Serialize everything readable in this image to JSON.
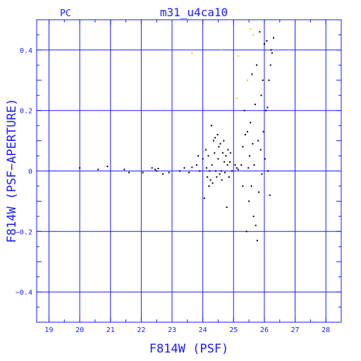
{
  "chart_data": {
    "type": "scatter",
    "title": "m31_u4ca10",
    "corner_label": "PC",
    "xlabel": "F814W (PSF)",
    "ylabel": "F814W (PSF−APERTURE)",
    "xlim": [
      18.6,
      28.5
    ],
    "ylim": [
      -0.5,
      0.5
    ],
    "x_ticks": [
      19,
      20,
      21,
      22,
      23,
      24,
      25,
      26,
      27,
      28
    ],
    "x_tick_labels": [
      "19",
      "20",
      "21",
      "22",
      "23",
      "24",
      "25",
      "26",
      "27",
      "28"
    ],
    "y_ticks": [
      -0.4,
      -0.2,
      0,
      0.2,
      0.4
    ],
    "y_tick_labels": [
      "−0.4",
      "−0.2",
      "0",
      "0.2",
      "0.4"
    ],
    "grid": true,
    "colors": {
      "axis": "#1a1aff",
      "grid": "#1a1aff",
      "points": "#000000",
      "outliers": "#e8c800"
    },
    "series": [
      {
        "color": "#000000",
        "points": [
          [
            20.0,
            0.01
          ],
          [
            20.6,
            0.005
          ],
          [
            20.9,
            0.015
          ],
          [
            21.45,
            0.005
          ],
          [
            21.6,
            -0.005
          ],
          [
            22.05,
            -0.005
          ],
          [
            22.35,
            0.01
          ],
          [
            22.45,
            0.005
          ],
          [
            22.5,
            0.0
          ],
          [
            22.55,
            0.008
          ],
          [
            22.7,
            -0.01
          ],
          [
            22.9,
            -0.005
          ],
          [
            23.25,
            0.0
          ],
          [
            23.4,
            0.01
          ],
          [
            23.55,
            -0.005
          ],
          [
            23.65,
            0.012
          ],
          [
            23.8,
            0.02
          ],
          [
            23.85,
            0.05
          ],
          [
            23.9,
            0.0
          ],
          [
            24.0,
            0.04
          ],
          [
            24.05,
            -0.09
          ],
          [
            24.1,
            0.07
          ],
          [
            24.12,
            0.01
          ],
          [
            24.15,
            -0.02
          ],
          [
            24.18,
            0.05
          ],
          [
            24.2,
            -0.05
          ],
          [
            24.22,
            0.0
          ],
          [
            24.25,
            -0.03
          ],
          [
            24.28,
            0.15
          ],
          [
            24.3,
            0.02
          ],
          [
            24.32,
            -0.04
          ],
          [
            24.35,
            0.1
          ],
          [
            24.38,
            0.06
          ],
          [
            24.4,
            0.11
          ],
          [
            24.42,
            0.0
          ],
          [
            24.45,
            -0.02
          ],
          [
            24.48,
            0.12
          ],
          [
            24.5,
            0.04
          ],
          [
            24.52,
            0.08
          ],
          [
            24.55,
            -0.01
          ],
          [
            24.57,
            0.09
          ],
          [
            24.6,
            0.0
          ],
          [
            24.62,
            -0.03
          ],
          [
            24.65,
            0.06
          ],
          [
            24.68,
            0.1
          ],
          [
            24.7,
            0.03
          ],
          [
            24.72,
            -0.005
          ],
          [
            24.75,
            0.05
          ],
          [
            24.78,
            -0.12
          ],
          [
            24.8,
            0.02
          ],
          [
            24.82,
            0.07
          ],
          [
            24.85,
            -0.02
          ],
          [
            24.88,
            0.03
          ],
          [
            24.9,
            0.06
          ],
          [
            24.95,
            0.0
          ],
          [
            25.05,
            0.02
          ],
          [
            25.1,
            0.01
          ],
          [
            25.15,
            0.005
          ],
          [
            25.25,
            0.02
          ],
          [
            25.3,
            -0.05
          ],
          [
            25.3,
            0.08
          ],
          [
            25.35,
            0.2
          ],
          [
            25.38,
            0.12
          ],
          [
            25.42,
            -0.2
          ],
          [
            25.45,
            0.13
          ],
          [
            25.48,
            0.01
          ],
          [
            25.5,
            -0.1
          ],
          [
            25.52,
            0.05
          ],
          [
            25.55,
            0.16
          ],
          [
            25.58,
            -0.05
          ],
          [
            25.6,
            0.32
          ],
          [
            25.62,
            0.09
          ],
          [
            25.65,
            -0.15
          ],
          [
            25.67,
            0.02
          ],
          [
            25.7,
            0.22
          ],
          [
            25.72,
            -0.18
          ],
          [
            25.75,
            0.35
          ],
          [
            25.77,
            -0.23
          ],
          [
            25.8,
            0.1
          ],
          [
            25.82,
            -0.07
          ],
          [
            25.85,
            0.46
          ],
          [
            25.88,
            0.07
          ],
          [
            25.9,
            0.25
          ],
          [
            25.92,
            -0.01
          ],
          [
            25.95,
            0.3
          ],
          [
            25.97,
            0.13
          ],
          [
            26.0,
            0.42
          ],
          [
            26.02,
            0.04
          ],
          [
            26.05,
            0.2
          ],
          [
            26.08,
            0.43
          ],
          [
            26.1,
            0.21
          ],
          [
            26.12,
            0.0
          ],
          [
            26.15,
            0.3
          ],
          [
            26.18,
            -0.08
          ],
          [
            26.2,
            0.35
          ],
          [
            26.22,
            0.4
          ],
          [
            26.25,
            0.39
          ],
          [
            26.3,
            0.44
          ]
        ]
      },
      {
        "color": "#e8c800",
        "points": [
          [
            23.65,
            0.39
          ],
          [
            24.6,
            0.4
          ],
          [
            25.15,
            0.38
          ],
          [
            25.55,
            0.47
          ],
          [
            25.65,
            0.45
          ],
          [
            25.45,
            0.3
          ],
          [
            25.1,
            0.24
          ]
        ]
      }
    ]
  }
}
